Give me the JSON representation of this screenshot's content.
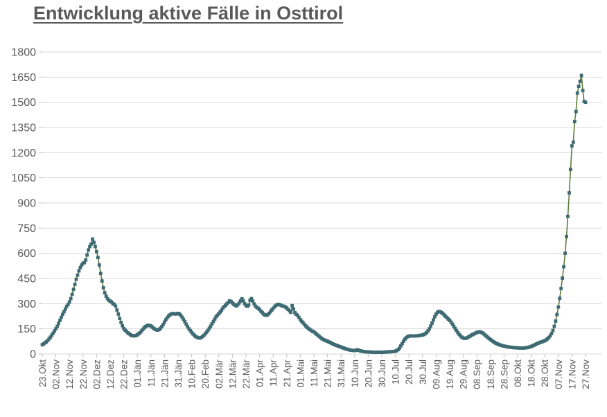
{
  "title": "Entwicklung aktive Fälle in Osttirol",
  "colors": {
    "title_text": "#595959",
    "axis_text": "#595959",
    "gridline": "#d9d9d9",
    "line": "#5e7d3a",
    "marker": "#3e6b73",
    "background": "#ffffff"
  },
  "chart_data": {
    "type": "line",
    "title": "Entwicklung aktive Fälle in Osttirol",
    "xlabel": "",
    "ylabel": "",
    "ylim": [
      0,
      1800
    ],
    "y_ticks": [
      0,
      150,
      300,
      450,
      600,
      750,
      900,
      1050,
      1200,
      1350,
      1500,
      1650,
      1800
    ],
    "x_tick_interval_days": 10,
    "x_tick_labels": [
      "23.Okt",
      "02.Nov",
      "12.Nov",
      "22.Nov",
      "02.Dez",
      "12.Dez",
      "22.Dez",
      "01.Jän",
      "11.Jän",
      "21.Jän",
      "31.Jän",
      "10.Feb",
      "20.Feb",
      "02.Mär",
      "12.Mär",
      "22.Mär",
      "01.Apr",
      "11.Apr",
      "21.Apr",
      "01.Mai",
      "11.Mai",
      "21.Mai",
      "31.Mai",
      "10.Jun",
      "20.Jun",
      "30.Jun",
      "10.Jul",
      "20.Jul",
      "30.Jul",
      "09.Aug",
      "19.Aug",
      "29.Aug",
      "08.Sep",
      "18.Sep",
      "28.Sep",
      "08.Okt",
      "18.Okt",
      "28.Okt",
      "07.Nov",
      "17.Nov",
      "27.Nov"
    ],
    "legend": [],
    "grid": "horizontal-only",
    "marker_shape": "square",
    "series": [
      {
        "name": "aktive Fälle",
        "values_daily": [
          55,
          60,
          66,
          72,
          80,
          90,
          100,
          112,
          124,
          137,
          150,
          165,
          182,
          200,
          218,
          236,
          252,
          268,
          284,
          295,
          310,
          330,
          355,
          385,
          415,
          445,
          470,
          495,
          515,
          530,
          540,
          545,
          560,
          590,
          620,
          640,
          655,
          685,
          665,
          640,
          610,
          575,
          530,
          480,
          435,
          395,
          365,
          345,
          330,
          320,
          315,
          310,
          300,
          295,
          285,
          262,
          238,
          212,
          188,
          168,
          152,
          142,
          134,
          126,
          120,
          114,
          110,
          108,
          108,
          110,
          114,
          120,
          127,
          136,
          146,
          155,
          163,
          168,
          171,
          170,
          167,
          160,
          153,
          148,
          144,
          142,
          146,
          153,
          163,
          176,
          190,
          204,
          216,
          226,
          233,
          238,
          241,
          240,
          238,
          240,
          242,
          238,
          230,
          219,
          206,
          192,
          177,
          163,
          150,
          139,
          129,
          119,
          111,
          104,
          99,
          96,
          95,
          98,
          104,
          111,
          120,
          130,
          141,
          153,
          166,
          180,
          194,
          208,
          221,
          231,
          240,
          250,
          261,
          273,
          283,
          291,
          299,
          308,
          317,
          312,
          304,
          297,
          290,
          286,
          294,
          304,
          316,
          329,
          317,
          300,
          289,
          284,
          292,
          320,
          330,
          315,
          298,
          285,
          278,
          272,
          265,
          255,
          246,
          238,
          232,
          230,
          234,
          242,
          252,
          262,
          272,
          281,
          289,
          294,
          296,
          293,
          289,
          286,
          284,
          280,
          274,
          266,
          257,
          248,
          288,
          268,
          246,
          236,
          230,
          218,
          205,
          195,
          186,
          176,
          167,
          159,
          152,
          146,
          140,
          135,
          132,
          125,
          118,
          111,
          104,
          97,
          91,
          86,
          82,
          79,
          76,
          72,
          68,
          64,
          60,
          56,
          53,
          50,
          47,
          44,
          41,
          38,
          35,
          32,
          29,
          27,
          25,
          23,
          22,
          21,
          20,
          22,
          25,
          22,
          19,
          17,
          15,
          14,
          13,
          13,
          12,
          12,
          11,
          11,
          10,
          10,
          10,
          10,
          10,
          10,
          10,
          11,
          11,
          12,
          12,
          13,
          13,
          14,
          14,
          15,
          17,
          20,
          26,
          35,
          48,
          62,
          76,
          88,
          97,
          103,
          106,
          108,
          108,
          107,
          107,
          108,
          108,
          109,
          110,
          112,
          113,
          116,
          121,
          128,
          137,
          150,
          166,
          184,
          203,
          222,
          238,
          248,
          253,
          252,
          247,
          240,
          232,
          224,
          216,
          208,
          200,
          190,
          178,
          165,
          152,
          139,
          127,
          116,
          107,
          100,
          95,
          93,
          94,
          97,
          102,
          107,
          112,
          116,
          120,
          124,
          128,
          131,
          132,
          130,
          126,
          120,
          113,
          106,
          99,
          92,
          86,
          80,
          74,
          69,
          64,
          60,
          57,
          54,
          51,
          49,
          47,
          45,
          44,
          42,
          41,
          40,
          39,
          38,
          37,
          37,
          36,
          36,
          35,
          35,
          35,
          36,
          37,
          38,
          40,
          42,
          45,
          48,
          52,
          56,
          60,
          64,
          67,
          70,
          73,
          76,
          79,
          84,
          90,
          98,
          108,
          122,
          140,
          165,
          196,
          235,
          280,
          332,
          390,
          452,
          520,
          600,
          700,
          820,
          960,
          1100,
          1240,
          1262,
          1385,
          1445,
          1555,
          1595,
          1625,
          1660,
          1570,
          1505,
          1500
        ]
      }
    ]
  }
}
